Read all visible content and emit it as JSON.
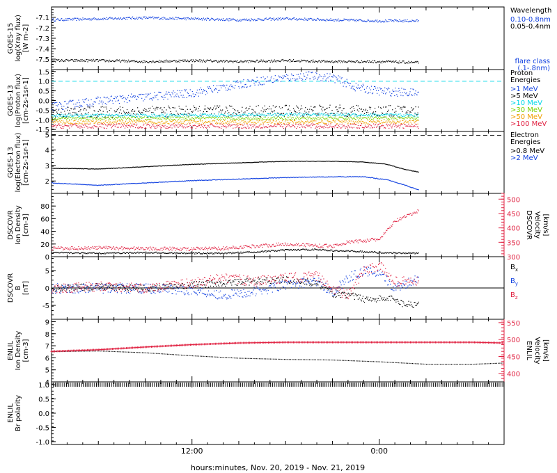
{
  "x_axis": {
    "title": "hours:minutes, Nov. 20, 2019 - Nov. 21, 2019",
    "ticks": [
      "12:00",
      "0:00"
    ],
    "tick_hours": [
      12,
      24
    ],
    "range_hours": [
      3,
      32
    ]
  },
  "colors": {
    "black": "#000000",
    "blue": "#1040e0",
    "cyan": "#00d8e8",
    "green": "#7ad000",
    "orange": "#f0a000",
    "red": "#e02040"
  },
  "chart_data": [
    {
      "type": "scatter",
      "panel": "goes-xray",
      "ylabel": [
        "GOES-15",
        "log(Xray flux)",
        "[W m-2]"
      ],
      "ylim": [
        -7.6,
        -7.0
      ],
      "yticks": [
        -7.1,
        -7.2,
        -7.3,
        -7.4,
        -7.5
      ],
      "legend_title": "Wavelength",
      "legend": [
        {
          "label": "0.10-0.8nm",
          "color": "blue"
        },
        {
          "label": "0.05-0.4nm",
          "color": "black"
        }
      ],
      "legend_note": [
        "flare class",
        "(.1-.8nm)"
      ],
      "series": [
        {
          "name": "0.10-0.8nm",
          "color": "blue",
          "x": [
            3,
            6,
            9,
            12,
            15,
            18,
            21,
            24,
            26.5
          ],
          "y": [
            -7.12,
            -7.11,
            -7.1,
            -7.11,
            -7.12,
            -7.11,
            -7.12,
            -7.13,
            -7.13
          ],
          "noise": 0.012
        },
        {
          "name": "0.05-0.4nm",
          "color": "black",
          "x": [
            3,
            6,
            9,
            12,
            15,
            18,
            21,
            24,
            26.5
          ],
          "y": [
            -7.51,
            -7.51,
            -7.52,
            -7.51,
            -7.52,
            -7.51,
            -7.52,
            -7.52,
            -7.53
          ],
          "noise": 0.012
        }
      ]
    },
    {
      "type": "scatter",
      "panel": "goes-proton",
      "ylabel": [
        "GOES-13",
        "log(Proton flux)",
        "[cm-2s-1sr-1]"
      ],
      "ylim": [
        -1.6,
        1.6
      ],
      "yticks": [
        1.5,
        1.0,
        0.5,
        0.0,
        -0.5,
        -1.0,
        -1.5
      ],
      "hline": {
        "y": 1.0,
        "color": "cyan"
      },
      "legend_title": [
        "Proton",
        "Energies"
      ],
      "legend": [
        {
          "label": ">1 MeV",
          "color": "blue"
        },
        {
          "label": ">5 MeV",
          "color": "black"
        },
        {
          "label": ">10 MeV",
          "color": "cyan"
        },
        {
          "label": ">30 MeV",
          "color": "green"
        },
        {
          "label": ">50 MeV",
          "color": "orange"
        },
        {
          "label": ">100 MeV",
          "color": "red"
        }
      ],
      "series": [
        {
          "name": ">1 MeV",
          "color": "blue",
          "x": [
            3,
            6,
            9,
            12,
            14,
            16,
            18,
            19.5,
            21,
            22.5,
            24,
            26.5
          ],
          "y": [
            -0.3,
            0.0,
            0.2,
            0.4,
            0.7,
            1.0,
            1.2,
            1.3,
            1.2,
            0.7,
            0.5,
            0.4
          ],
          "noise": 0.22
        },
        {
          "name": ">5 MeV",
          "color": "black",
          "x": [
            3,
            12,
            20,
            26.5
          ],
          "y": [
            -0.6,
            -0.55,
            -0.5,
            -0.55
          ],
          "noise": 0.3
        },
        {
          "name": ">10 MeV",
          "color": "cyan",
          "x": [
            3,
            12,
            20,
            26.5
          ],
          "y": [
            -0.75,
            -0.75,
            -0.7,
            -0.75
          ],
          "noise": 0.08
        },
        {
          "name": ">30 MeV",
          "color": "green",
          "x": [
            3,
            12,
            20,
            26.5
          ],
          "y": [
            -0.9,
            -0.9,
            -0.9,
            -0.9
          ],
          "noise": 0.08
        },
        {
          "name": ">50 MeV",
          "color": "orange",
          "x": [
            3,
            12,
            20,
            26.5
          ],
          "y": [
            -1.1,
            -1.1,
            -1.1,
            -1.1
          ],
          "noise": 0.1
        },
        {
          "name": ">100 MeV",
          "color": "red",
          "x": [
            3,
            12,
            20,
            26.5
          ],
          "y": [
            -1.3,
            -1.3,
            -1.3,
            -1.3
          ],
          "noise": 0.12
        }
      ]
    },
    {
      "type": "line",
      "panel": "goes-electron",
      "ylabel": [
        "GOES-13",
        "log(Electron flux)",
        "[cm-2s-1sr-1]"
      ],
      "ylim": [
        1.2,
        5.2
      ],
      "yticks": [
        5,
        4,
        3,
        2
      ],
      "hline": {
        "y": 4.95,
        "color": "black",
        "dashed": true
      },
      "legend_title": [
        "Electron",
        "Energies"
      ],
      "legend": [
        {
          "label": ">0.8 MeV",
          "color": "black"
        },
        {
          "label": ">2 MeV",
          "color": "blue"
        }
      ],
      "series": [
        {
          "name": ">0.8 MeV",
          "color": "black",
          "x": [
            3,
            6,
            9,
            12,
            15,
            18,
            21,
            23,
            24.5,
            25.5,
            26.5
          ],
          "y": [
            2.85,
            2.8,
            2.95,
            3.1,
            3.2,
            3.3,
            3.3,
            3.25,
            3.1,
            2.8,
            2.6
          ],
          "noise": 0.015
        },
        {
          "name": ">2 MeV",
          "color": "blue",
          "x": [
            3,
            6,
            9,
            12,
            15,
            18,
            21,
            23,
            24.5,
            25.5,
            26.5
          ],
          "y": [
            1.9,
            1.75,
            1.9,
            2.05,
            2.15,
            2.25,
            2.3,
            2.3,
            2.1,
            1.8,
            1.45
          ],
          "noise": 0.02
        }
      ]
    },
    {
      "type": "scatter",
      "panel": "dscovr-plasma",
      "ylabel": [
        "DSCOVR",
        "Ion Density",
        "[cm-3]"
      ],
      "ylim": [
        0,
        100
      ],
      "yticks": [
        80,
        60,
        40,
        20,
        0
      ],
      "ylabel_right": [
        "DSCOVR",
        "Velocity",
        "[km/s]"
      ],
      "ylim_right": [
        300,
        520
      ],
      "yticks_right": [
        500,
        450,
        400,
        350,
        300
      ],
      "series": [
        {
          "name": "Ion Density",
          "axis": "left",
          "color": "black",
          "x": [
            3,
            6,
            9,
            12,
            14,
            16,
            18,
            20,
            21,
            22.5,
            24,
            26.5
          ],
          "y": [
            7,
            6,
            7,
            6,
            6,
            8,
            11,
            12,
            10,
            9,
            7,
            6
          ],
          "noise": 1.2
        },
        {
          "name": "Velocity",
          "axis": "right",
          "color": "red",
          "x": [
            3,
            6,
            9,
            12,
            14,
            16,
            18,
            20,
            21,
            22,
            24,
            25,
            26.5
          ],
          "y": [
            330,
            332,
            330,
            328,
            330,
            338,
            345,
            340,
            338,
            352,
            362,
            425,
            460
          ],
          "noise": 6
        }
      ]
    },
    {
      "type": "scatter",
      "panel": "dscovr-mag",
      "ylabel": [
        "DSCOVR",
        "B",
        "[nT]"
      ],
      "ylim": [
        -9,
        9
      ],
      "yticks": [
        5,
        0,
        -5
      ],
      "zero_line": true,
      "legend": [
        {
          "label": "Bx",
          "color": "black"
        },
        {
          "label": "By",
          "color": "blue"
        },
        {
          "label": "Bz",
          "color": "red"
        }
      ],
      "series": [
        {
          "name": "Bx",
          "color": "black",
          "x": [
            3,
            6,
            9,
            12,
            14,
            16,
            18,
            20,
            21,
            22,
            23,
            24,
            25,
            25.5,
            26.5
          ],
          "y": [
            0,
            0.5,
            0,
            1,
            1.5,
            2,
            2.5,
            1.5,
            -1.5,
            -2,
            -3,
            -3,
            -3,
            -4.5,
            -4.5
          ],
          "noise": 1.0
        },
        {
          "name": "By",
          "color": "blue",
          "x": [
            3,
            6,
            9,
            12,
            14,
            16,
            18,
            20,
            21,
            22,
            23,
            24,
            25,
            26.5
          ],
          "y": [
            0,
            0,
            0,
            -0.5,
            -2,
            -1,
            1,
            2,
            -1,
            3,
            5,
            4,
            0,
            3
          ],
          "noise": 1.4
        },
        {
          "name": "Bz",
          "color": "red",
          "x": [
            3,
            6,
            9,
            12,
            14,
            16,
            18,
            20,
            21,
            22,
            23,
            24,
            25,
            26.5
          ],
          "y": [
            0,
            0.5,
            0,
            1.5,
            3,
            2,
            3,
            3.5,
            0,
            -2,
            5,
            6.5,
            2,
            2
          ],
          "noise": 1.4
        }
      ]
    },
    {
      "type": "line",
      "panel": "enlil-plasma",
      "ylabel": [
        "ENLIL",
        "Ion Density",
        "[cm-3]"
      ],
      "ylim": [
        4,
        9.2
      ],
      "yticks": [
        9,
        8,
        7,
        6,
        5,
        4
      ],
      "ylabel_right": [
        "ENLIL",
        "Velocity",
        "[km/s]"
      ],
      "ylim_right": [
        375,
        560
      ],
      "yticks_right": [
        550,
        500,
        450,
        400
      ],
      "series": [
        {
          "name": "Ion Density",
          "axis": "left",
          "color": "black",
          "x": [
            3,
            6,
            9,
            12,
            15,
            18,
            21,
            24,
            27,
            30,
            32
          ],
          "y": [
            6.55,
            6.6,
            6.45,
            6.2,
            6.0,
            5.9,
            5.85,
            5.7,
            5.5,
            5.5,
            5.6
          ],
          "noise": 0
        },
        {
          "name": "Velocity",
          "axis": "right",
          "color": "red",
          "x": [
            3,
            6,
            9,
            12,
            15,
            18,
            21,
            24,
            27,
            30,
            32
          ],
          "y": [
            465,
            470,
            478,
            485,
            490,
            492,
            492,
            492,
            492,
            492,
            490
          ],
          "noise": 0
        }
      ]
    },
    {
      "type": "line",
      "panel": "enlil-polarity",
      "ylabel": [
        "ENLIL",
        "Br polarity"
      ],
      "ylim": [
        -1.1,
        1.1
      ],
      "yticks": [
        1.0,
        0.5,
        0.0,
        -0.5,
        -1.0
      ],
      "series": [
        {
          "name": "Br polarity",
          "color": "black",
          "x": [
            3,
            32
          ],
          "y": [
            1.0,
            1.0
          ],
          "noise": 0
        }
      ]
    }
  ]
}
